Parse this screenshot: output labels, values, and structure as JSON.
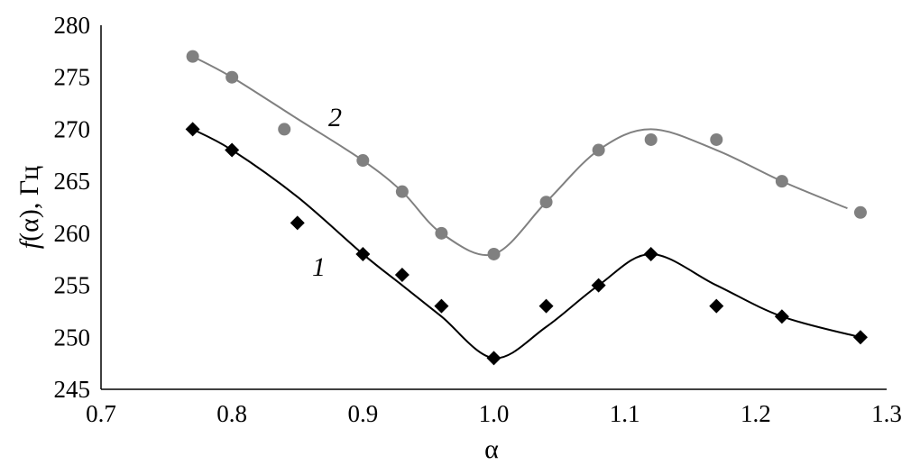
{
  "chart_data": {
    "type": "scatter",
    "xlabel": "α",
    "ylabel_italic": "f",
    "ylabel_rest": "(α), Гц",
    "xlim": [
      0.7,
      1.3
    ],
    "ylim": [
      245,
      280
    ],
    "xticks": [
      "0.7",
      "0.8",
      "0.9",
      "1.0",
      "1.1",
      "1.2",
      "1.3"
    ],
    "yticks": [
      "245",
      "250",
      "255",
      "260",
      "265",
      "270",
      "275",
      "280"
    ],
    "grid": false,
    "series": [
      {
        "name": "1",
        "marker": "diamond",
        "color": "#000000",
        "x": [
          0.77,
          0.8,
          0.85,
          0.9,
          0.93,
          0.96,
          1.0,
          1.04,
          1.08,
          1.12,
          1.17,
          1.22,
          1.28
        ],
        "y": [
          270,
          268,
          261,
          258,
          256,
          253,
          248,
          253,
          255,
          258,
          253,
          252,
          250
        ],
        "curve": {
          "x": [
            0.77,
            0.8,
            0.85,
            0.9,
            0.93,
            0.96,
            1.0,
            1.04,
            1.08,
            1.12,
            1.17,
            1.22,
            1.28
          ],
          "y": [
            270,
            268,
            263.5,
            258,
            255,
            252,
            248,
            251,
            255,
            258,
            255,
            252,
            250
          ]
        }
      },
      {
        "name": "2",
        "marker": "circle",
        "color": "#808080",
        "x": [
          0.77,
          0.8,
          0.84,
          0.9,
          0.93,
          0.96,
          1.0,
          1.04,
          1.08,
          1.12,
          1.17,
          1.22,
          1.28
        ],
        "y": [
          277,
          275,
          270,
          267,
          264,
          260,
          258,
          263,
          268,
          269,
          269,
          265,
          262
        ],
        "curve": {
          "x": [
            0.77,
            0.8,
            0.85,
            0.9,
            0.93,
            0.96,
            1.0,
            1.04,
            1.08,
            1.12,
            1.17,
            1.22,
            1.27
          ],
          "y": [
            277,
            275,
            271,
            267,
            264,
            260,
            258,
            263,
            268,
            270,
            268,
            265,
            262.4
          ]
        }
      }
    ]
  }
}
